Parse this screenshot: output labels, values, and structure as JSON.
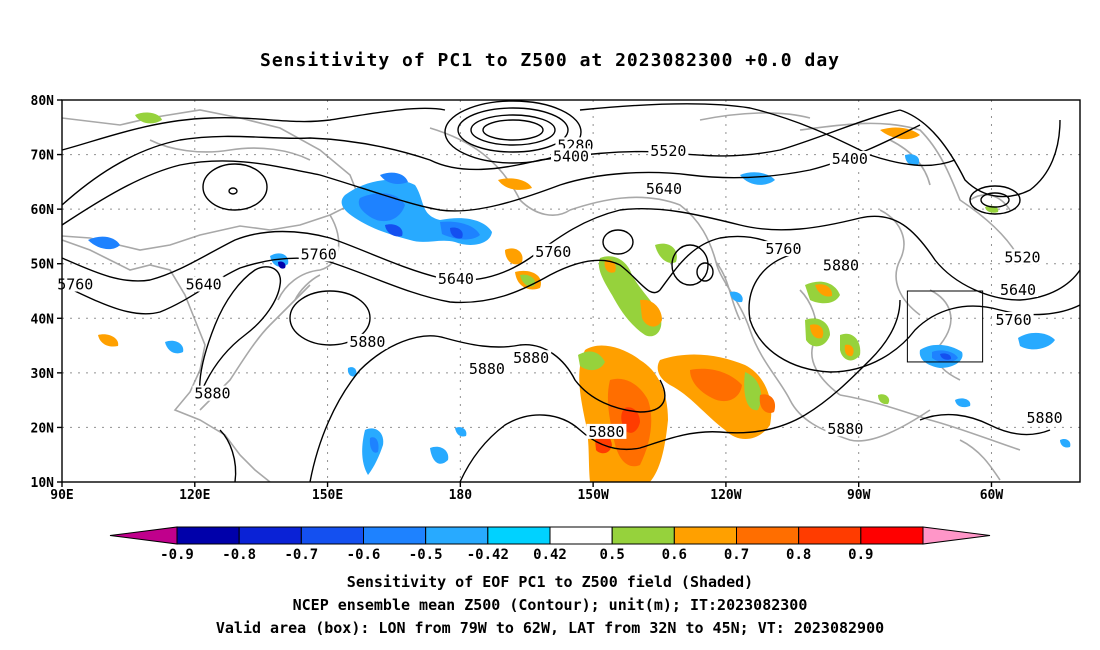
{
  "title": "Sensitivity of PC1 to Z500 at 2023082300 +0.0 day",
  "map": {
    "lon_range": [
      90,
      320
    ],
    "lat_range": [
      10,
      80
    ],
    "lat_ticks": [
      "80N",
      "70N",
      "60N",
      "50N",
      "40N",
      "30N",
      "20N",
      "10N"
    ],
    "lon_ticks": [
      "90E",
      "120E",
      "150E",
      "180",
      "150W",
      "120W",
      "90W",
      "60W"
    ],
    "valid_box": {
      "lon": [
        -79,
        -62
      ],
      "lat": [
        32,
        45
      ]
    }
  },
  "contour_labels": [
    {
      "text": "5280",
      "lon": 206,
      "lat": 71.5
    },
    {
      "text": "5400",
      "lon": 205,
      "lat": 69.5
    },
    {
      "text": "5520",
      "lon": 227,
      "lat": 70.5
    },
    {
      "text": "5400",
      "lon": 268,
      "lat": 69
    },
    {
      "text": "5640",
      "lon": 226,
      "lat": 63.5
    },
    {
      "text": "5520",
      "lon": 307,
      "lat": 51
    },
    {
      "text": "5760",
      "lon": 148,
      "lat": 51.5
    },
    {
      "text": "5760",
      "lon": 93,
      "lat": 46
    },
    {
      "text": "5640",
      "lon": 122,
      "lat": 46
    },
    {
      "text": "5640",
      "lon": 179,
      "lat": 47
    },
    {
      "text": "5760",
      "lon": 201,
      "lat": 52
    },
    {
      "text": "5760",
      "lon": 253,
      "lat": 52.5
    },
    {
      "text": "5880",
      "lon": 266,
      "lat": 49.5
    },
    {
      "text": "5640",
      "lon": 306,
      "lat": 45
    },
    {
      "text": "5760",
      "lon": 305,
      "lat": 39.5
    },
    {
      "text": "5880",
      "lon": 159,
      "lat": 35.5
    },
    {
      "text": "5880",
      "lon": 196,
      "lat": 32.5
    },
    {
      "text": "5880",
      "lon": 186,
      "lat": 30.5
    },
    {
      "text": "5880",
      "lon": 124,
      "lat": 26
    },
    {
      "text": "5880",
      "lon": 213,
      "lat": 19
    },
    {
      "text": "5880",
      "lon": 267,
      "lat": 19.5
    },
    {
      "text": "5880",
      "lon": 312,
      "lat": 21.5
    }
  ],
  "colorbar": {
    "labels": [
      "-0.9",
      "-0.8",
      "-0.7",
      "-0.6",
      "-0.5",
      "-0.42",
      "0.42",
      "0.5",
      "0.6",
      "0.7",
      "0.8",
      "0.9"
    ],
    "colors": [
      "#c0008c",
      "#0000aa",
      "#0a22d6",
      "#1450f0",
      "#1e82ff",
      "#28aaff",
      "#00d2ff",
      "#ffffff",
      "#96d23c",
      "#ffa000",
      "#ff6e00",
      "#ff3c00",
      "#ff0000",
      "#ff96c8"
    ]
  },
  "footer": {
    "line1": "Sensitivity of EOF PC1 to Z500 field (Shaded)",
    "line2": "NCEP ensemble mean Z500 (Contour); unit(m); IT:2023082300",
    "line3": "Valid area (box): LON from 79W to 62W, LAT from 32N to 45N; VT: 2023082900"
  }
}
